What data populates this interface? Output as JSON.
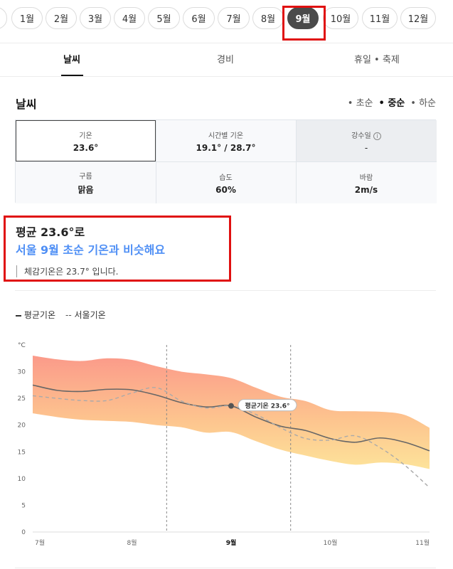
{
  "months": [
    "1월",
    "2월",
    "3월",
    "4월",
    "5월",
    "6월",
    "7월",
    "8월",
    "9월",
    "10월",
    "11월",
    "12월"
  ],
  "active_month": "9월",
  "tabs": [
    {
      "label": "날씨",
      "active": true
    },
    {
      "label": "경비",
      "active": false
    },
    {
      "label": "휴일 • 축제",
      "active": false
    }
  ],
  "weather": {
    "title": "날씨",
    "periods": [
      "초순",
      "중순",
      "하순"
    ],
    "active_period": "중순",
    "stats": {
      "temp": {
        "label": "기온",
        "value": "23.6°"
      },
      "hourly": {
        "label": "시간별 기온",
        "value": "19.1° / 28.7°"
      },
      "rain": {
        "label": "강수일",
        "value": "-"
      },
      "cloud": {
        "label": "구름",
        "value": "맑음"
      },
      "humidity": {
        "label": "습도",
        "value": "60%"
      },
      "wind": {
        "label": "바람",
        "value": "2m/s"
      }
    }
  },
  "summary": {
    "title": "평균 23.6°로",
    "subtitle": "서울 9월 초순 기온과 비슷해요",
    "note": "체감기온은 23.7° 입니다."
  },
  "legend": {
    "avg": "평균기온",
    "seoul": "서울기온"
  },
  "colors": {
    "accent_blue": "#4f8ff5",
    "highlight_red": "#e01010",
    "active_chip": "#4a4a4a"
  },
  "chart_data": {
    "type": "line",
    "unit_label": "°C",
    "y_ticks": [
      0,
      5,
      10,
      15,
      20,
      25,
      30
    ],
    "ylim": [
      0,
      35
    ],
    "x_labels": [
      "7월",
      "8월",
      "9월",
      "10월",
      "11월"
    ],
    "x_label_positions": [
      0,
      2,
      4,
      6,
      8
    ],
    "xlim": [
      0,
      8
    ],
    "callout": "평균기온 23.6°",
    "series": [
      {
        "name": "평균기온",
        "style": "solid",
        "color": "#666666",
        "x": [
          0,
          0.5,
          1,
          1.5,
          2,
          2.5,
          3,
          3.5,
          4,
          4.5,
          5,
          5.5,
          6,
          6.5,
          7,
          7.5,
          8
        ],
        "y": [
          27.5,
          26.5,
          26.3,
          26.7,
          26.6,
          25.6,
          24.2,
          23.4,
          23.6,
          21.5,
          19.8,
          19.0,
          17.5,
          16.8,
          17.6,
          16.8,
          15.2
        ]
      },
      {
        "name": "서울기온",
        "style": "dashed",
        "color": "#aaaaaa",
        "x": [
          0,
          0.5,
          1,
          1.5,
          2,
          2.5,
          3,
          3.5,
          4,
          4.5,
          5,
          5.5,
          6,
          6.5,
          7,
          7.5,
          8
        ],
        "y": [
          25.5,
          25.0,
          24.6,
          24.6,
          26.0,
          27.0,
          24.5,
          23.2,
          23.6,
          22.0,
          19.5,
          17.5,
          17.2,
          18.0,
          15.8,
          12.5,
          8.3
        ]
      }
    ],
    "band": {
      "x": [
        0,
        0.5,
        1,
        1.5,
        2,
        2.5,
        3,
        3.5,
        4,
        4.5,
        5,
        5.5,
        6,
        6.5,
        7,
        7.5,
        8
      ],
      "upper": [
        33.0,
        32.3,
        32.0,
        32.5,
        32.2,
        31.0,
        30.0,
        29.5,
        28.8,
        27.0,
        25.3,
        24.5,
        22.8,
        22.6,
        22.5,
        21.9,
        19.5
      ],
      "lower": [
        22.2,
        21.5,
        21.0,
        20.8,
        20.6,
        20.0,
        19.6,
        18.6,
        18.7,
        17.0,
        15.4,
        14.3,
        13.3,
        12.6,
        13.0,
        12.7,
        11.8
      ]
    },
    "markers_x": [
      2.7,
      5.2
    ]
  }
}
